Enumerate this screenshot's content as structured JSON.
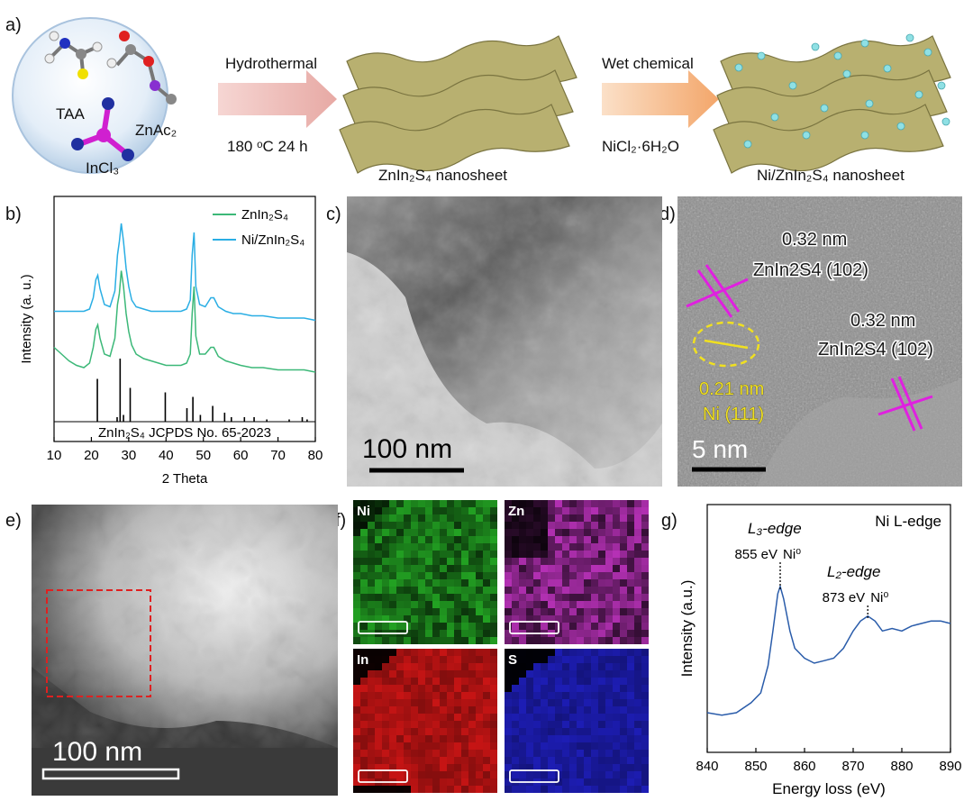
{
  "panel_labels": [
    "a)",
    "b)",
    "c)",
    "d)",
    "e)",
    "f)",
    "g)"
  ],
  "schematic": {
    "precursors": [
      "TAA",
      "ZnAc₂",
      "InCl₃"
    ],
    "step1": {
      "method": "Hydrothermal",
      "condition": "180 ᵒC 24 h"
    },
    "product1": "ZnIn₂S₄ nanosheet",
    "step2": {
      "method": "Wet chemical",
      "reagent": "NiCl₂·6H₂O"
    },
    "product2": "Ni/ZnIn₂S₄ nanosheet"
  },
  "chart_data": [
    {
      "type": "line",
      "xlabel": "2 Theta",
      "ylabel": "Intensity (a. u.)",
      "xlim": [
        10,
        80
      ],
      "xticks": [
        10,
        20,
        30,
        40,
        50,
        60,
        70,
        80
      ],
      "ylim": [
        0,
        100
      ],
      "x": [
        10,
        12,
        14,
        16,
        18,
        19.5,
        20.5,
        21.2,
        21.7,
        22.3,
        23.5,
        25,
        26.3,
        27,
        27.5,
        28,
        28.6,
        29.3,
        30,
        30.8,
        32,
        34,
        36,
        38,
        40,
        42,
        44,
        45.5,
        46.5,
        47,
        47.5,
        48,
        49,
        50.5,
        52,
        52.8,
        54,
        56,
        58,
        60,
        63,
        66,
        70,
        74,
        77,
        80
      ],
      "series": [
        {
          "name": "ZnIn₂S₄",
          "color": "#3cb878",
          "values": [
            33,
            30,
            27,
            25,
            24,
            26,
            33,
            41,
            43,
            37,
            30,
            29,
            37,
            52,
            57,
            67,
            60,
            48,
            40,
            34,
            30,
            28,
            27,
            26,
            25,
            25,
            25,
            26,
            30,
            48,
            60,
            38,
            30,
            30,
            33,
            33,
            29,
            27,
            26,
            25,
            24,
            24,
            23,
            23,
            23,
            22
          ]
        },
        {
          "name": "Ni/ZnIn₂S₄",
          "color": "#2aaee4",
          "values": [
            49,
            49,
            49,
            49,
            49,
            50,
            55,
            63,
            65,
            59,
            52,
            51,
            58,
            74,
            80,
            88,
            80,
            68,
            60,
            54,
            51,
            50,
            49,
            49,
            49,
            49,
            49,
            50,
            54,
            74,
            84,
            60,
            52,
            51,
            55,
            55,
            51,
            49,
            48,
            48,
            47,
            47,
            46,
            46,
            46,
            45
          ]
        }
      ],
      "reference": {
        "label": "ZnIn₂S₄ JCPDS No. 65-2023",
        "color": "#000000",
        "positions": [
          21.6,
          26.9,
          27.7,
          28.6,
          30.4,
          39.8,
          45.6,
          47.2,
          49.2,
          52.5,
          55.7,
          57.5,
          61,
          63.6,
          67,
          73,
          76.5,
          77.8
        ],
        "heights": [
          19,
          2,
          28,
          3,
          15,
          13,
          6,
          11,
          3,
          7,
          4,
          2,
          2,
          2,
          1,
          1,
          2,
          1
        ]
      }
    },
    {
      "type": "line",
      "xlabel": "Energy loss (eV)",
      "ylabel": "Intensity (a.u.)",
      "xlim": [
        840,
        890
      ],
      "xticks": [
        840,
        850,
        860,
        870,
        880,
        890
      ],
      "ylim": [
        0,
        100
      ],
      "x": [
        840,
        843,
        846,
        849,
        851,
        852.5,
        853.5,
        854.5,
        855,
        855.7,
        857,
        858,
        860,
        862,
        864,
        866,
        868,
        870,
        871.5,
        873,
        874.5,
        876,
        878,
        880,
        882,
        884,
        886,
        888,
        890
      ],
      "series": [
        {
          "name": "Ni L-edge",
          "color": "#2a5caa",
          "values": [
            16,
            15,
            16,
            20,
            24,
            35,
            49,
            64,
            67,
            62,
            49,
            42,
            38,
            36,
            37,
            38,
            42,
            49,
            53,
            55,
            53,
            49,
            50,
            49,
            51,
            52,
            53,
            53,
            52
          ]
        }
      ],
      "markers": [
        {
          "x": 855,
          "label": "855 eV",
          "edge": "L₃-edge",
          "state": "Ni⁰"
        },
        {
          "x": 873,
          "label": "873 eV",
          "edge": "L₂-edge",
          "state": "Ni⁰"
        }
      ]
    }
  ],
  "tem_c": {
    "scale_bar": "100 nm"
  },
  "hrtem_d": {
    "annotations": [
      "0.32 nm",
      "ZnIn2S4 (102)",
      "0.32 nm",
      "ZnIn2S4 (102)",
      "0.21 nm",
      "Ni (111)"
    ],
    "scale_bar": "5 nm"
  },
  "haadf_e": {
    "scale_bar": "100 nm"
  },
  "eds_maps": [
    {
      "element": "Ni",
      "color": "#2ac42a"
    },
    {
      "element": "Zn",
      "color": "#d83ad8"
    },
    {
      "element": "In",
      "color": "#e81818"
    },
    {
      "element": "S",
      "color": "#2424e0"
    }
  ]
}
